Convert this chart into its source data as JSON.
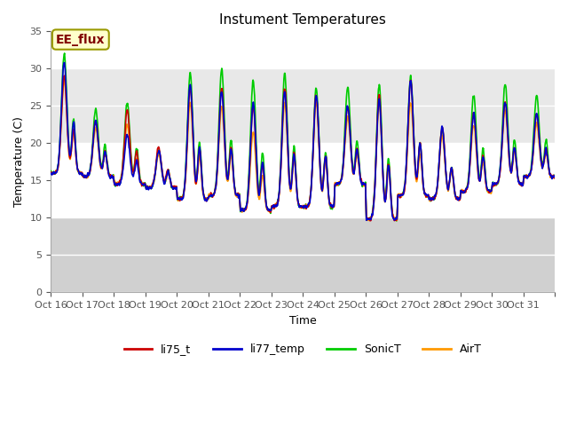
{
  "title": "Instument Temperatures",
  "xlabel": "Time",
  "ylabel": "Temperature (C)",
  "ylim": [
    0,
    35
  ],
  "yticks": [
    0,
    5,
    10,
    15,
    20,
    25,
    30,
    35
  ],
  "line_colors": {
    "li75_t": "#cc0000",
    "li77_temp": "#0000cc",
    "SonicT": "#00cc00",
    "AirT": "#ff9900"
  },
  "line_width": 1.2,
  "ax_bg_color": "#ffffff",
  "gray_band_color": "#d8d8d8",
  "annotation_text": "EE_flux",
  "annotation_color": "#800000",
  "annotation_bg": "#ffffcc",
  "annotation_edge": "#999900",
  "title_fontsize": 11,
  "label_fontsize": 9,
  "tick_fontsize": 8,
  "legend_fontsize": 9,
  "n_points_per_day": 144,
  "n_days": 16,
  "daily_min_base": [
    16.0,
    15.5,
    14.5,
    14.0,
    12.5,
    13.0,
    11.0,
    11.5,
    11.5,
    14.5,
    9.8,
    13.0,
    12.5,
    13.5,
    14.5,
    15.5
  ],
  "daily_max_li75": [
    29.0,
    23.0,
    24.5,
    19.5,
    27.5,
    27.5,
    25.0,
    27.5,
    26.5,
    25.0,
    26.5,
    28.5,
    22.0,
    24.0,
    25.5,
    24.0
  ],
  "daily_max_li77": [
    31.0,
    23.0,
    21.0,
    19.0,
    28.0,
    27.0,
    25.5,
    27.0,
    26.5,
    25.0,
    26.0,
    28.5,
    22.0,
    24.0,
    25.5,
    24.0
  ],
  "daily_max_sonic": [
    32.0,
    24.5,
    25.5,
    19.0,
    29.5,
    30.0,
    28.5,
    29.5,
    27.5,
    27.5,
    28.0,
    29.0,
    22.0,
    26.5,
    28.0,
    26.5
  ],
  "daily_max_air": [
    28.5,
    22.0,
    22.5,
    18.5,
    25.5,
    25.0,
    21.5,
    25.5,
    25.5,
    23.5,
    25.5,
    25.5,
    21.0,
    22.5,
    24.5,
    22.5
  ]
}
